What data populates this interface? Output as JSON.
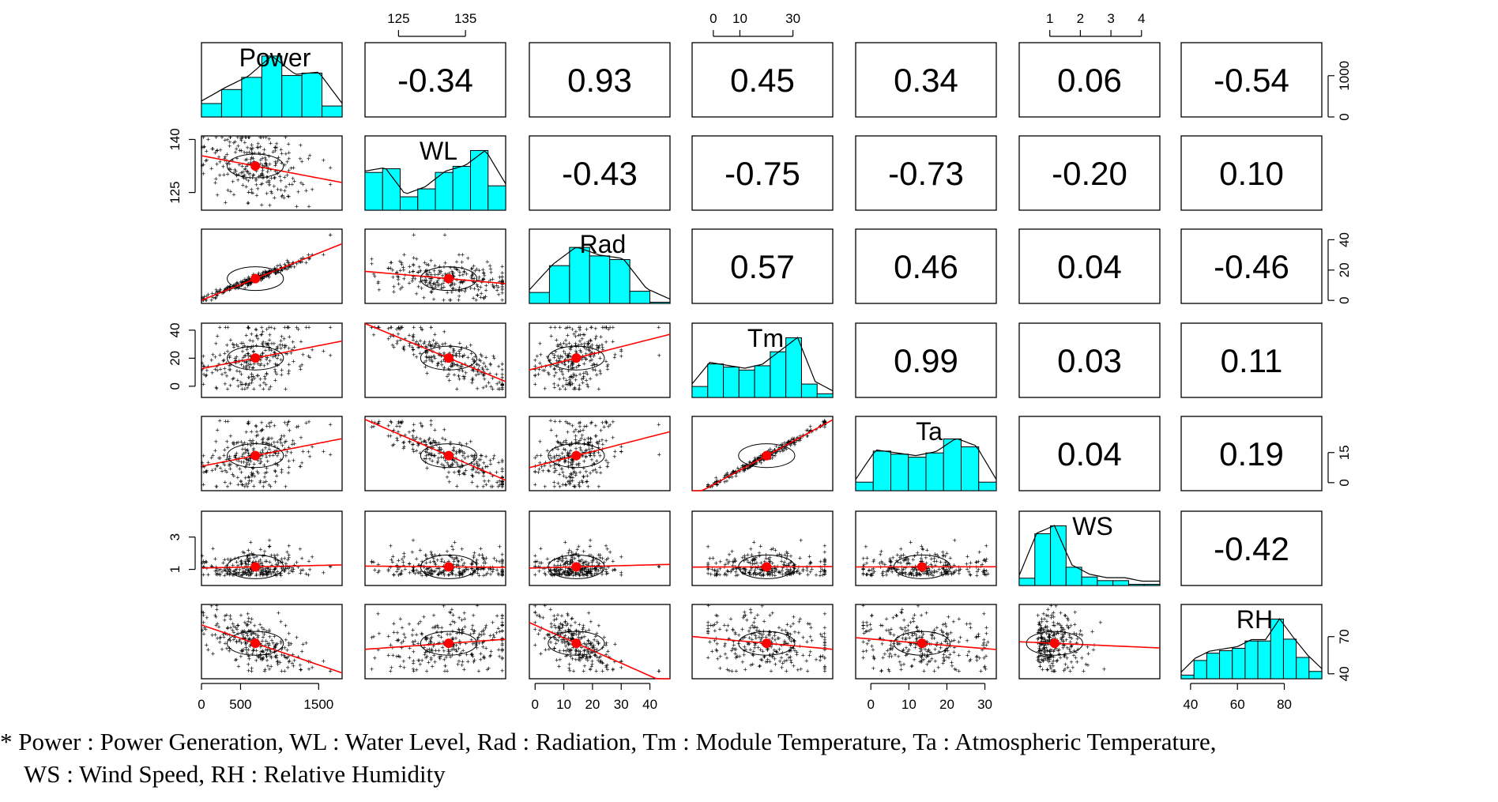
{
  "chart_data": {
    "type": "scatter-matrix",
    "variables": [
      "Power",
      "WL",
      "Rad",
      "Tm",
      "Ta",
      "WS",
      "RH"
    ],
    "ranges": {
      "Power": [
        0,
        1800
      ],
      "WL": [
        120,
        141
      ],
      "Rad": [
        -2,
        47
      ],
      "Tm": [
        -8,
        45
      ],
      "Ta": [
        -4,
        33
      ],
      "WS": [
        0,
        4.6
      ],
      "RH": [
        36,
        96
      ]
    },
    "ticks": {
      "Power": [
        0,
        500,
        1500
      ],
      "Power_right": [
        0,
        1000
      ],
      "WL": [
        125,
        135
      ],
      "WL_left": [
        125,
        140
      ],
      "Rad": [
        0,
        10,
        20,
        30,
        40
      ],
      "Tm": [
        0,
        10,
        30
      ],
      "Tm_left": [
        0,
        20,
        40
      ],
      "Ta": [
        0,
        10,
        20,
        30
      ],
      "Ta_right": [
        0,
        15
      ],
      "WS": [
        1,
        2,
        3,
        4
      ],
      "WS_left": [
        1,
        3
      ],
      "RH": [
        40,
        60,
        80
      ],
      "RH_right": [
        40,
        70
      ]
    },
    "correlations": [
      {
        "row": 0,
        "col": 1,
        "value": "-0.34"
      },
      {
        "row": 0,
        "col": 2,
        "value": "0.93"
      },
      {
        "row": 0,
        "col": 3,
        "value": "0.45"
      },
      {
        "row": 0,
        "col": 4,
        "value": "0.34"
      },
      {
        "row": 0,
        "col": 5,
        "value": "0.06"
      },
      {
        "row": 0,
        "col": 6,
        "value": "-0.54"
      },
      {
        "row": 1,
        "col": 2,
        "value": "-0.43"
      },
      {
        "row": 1,
        "col": 3,
        "value": "-0.75"
      },
      {
        "row": 1,
        "col": 4,
        "value": "-0.73"
      },
      {
        "row": 1,
        "col": 5,
        "value": "-0.20"
      },
      {
        "row": 1,
        "col": 6,
        "value": "0.10"
      },
      {
        "row": 2,
        "col": 3,
        "value": "0.57"
      },
      {
        "row": 2,
        "col": 4,
        "value": "0.46"
      },
      {
        "row": 2,
        "col": 5,
        "value": "0.04"
      },
      {
        "row": 2,
        "col": 6,
        "value": "-0.46"
      },
      {
        "row": 3,
        "col": 4,
        "value": "0.99"
      },
      {
        "row": 3,
        "col": 5,
        "value": "0.03"
      },
      {
        "row": 3,
        "col": 6,
        "value": "0.11"
      },
      {
        "row": 4,
        "col": 5,
        "value": "0.04"
      },
      {
        "row": 4,
        "col": 6,
        "value": "0.19"
      },
      {
        "row": 5,
        "col": 6,
        "value": "-0.42"
      }
    ],
    "histograms": {
      "Power": [
        0.22,
        0.45,
        0.65,
        1.0,
        0.68,
        0.72,
        0.18
      ],
      "WL": [
        0.62,
        0.68,
        0.22,
        0.35,
        0.62,
        0.72,
        0.98,
        0.4
      ],
      "Rad": [
        0.18,
        0.62,
        0.92,
        0.78,
        0.72,
        0.2,
        0.02
      ],
      "Tm": [
        0.18,
        0.55,
        0.5,
        0.45,
        0.52,
        0.75,
        0.98,
        0.22,
        0.06
      ],
      "Ta": [
        0.14,
        0.65,
        0.6,
        0.55,
        0.62,
        0.85,
        0.72,
        0.14
      ],
      "WS": [
        0.12,
        0.85,
        0.98,
        0.3,
        0.14,
        0.08,
        0.08,
        0.02,
        0.02
      ],
      "RH": [
        0.06,
        0.3,
        0.42,
        0.46,
        0.5,
        0.62,
        0.62,
        0.98,
        0.65,
        0.35,
        0.12
      ]
    },
    "scatter_color": "#000000",
    "fit_color": "#ff0000",
    "hist_color": "#00ffff",
    "centroid_color": "#ff0000"
  },
  "caption": {
    "line1": "* Power : Power Generation, WL : Water Level, Rad : Radiation, Tm : Module Temperature, Ta : Atmospheric Temperature,",
    "line2": "WS : Wind Speed, RH : Relative Humidity"
  }
}
